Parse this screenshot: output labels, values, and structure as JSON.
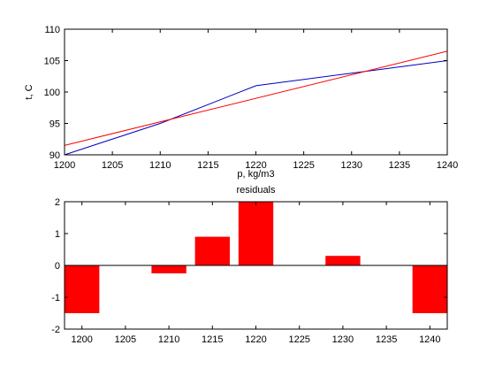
{
  "chart_data": [
    {
      "type": "line",
      "title": "",
      "xlabel": "p, kg/m3",
      "ylabel": "t, C",
      "xlim": [
        1200,
        1240
      ],
      "ylim": [
        90,
        110
      ],
      "xticks": [
        "1200",
        "1205",
        "1210",
        "1215",
        "1220",
        "1225",
        "1230",
        "1235",
        "1240"
      ],
      "yticks": [
        "90",
        "95",
        "100",
        "105",
        "110"
      ],
      "grid": false,
      "series": [
        {
          "color": "#0000c0",
          "x": [
            1200,
            1210,
            1220,
            1230,
            1240
          ],
          "y": [
            90,
            95,
            101,
            103,
            105
          ]
        },
        {
          "color": "#ff0000",
          "x": [
            1200,
            1240
          ],
          "y": [
            91.5,
            106.5
          ]
        }
      ]
    },
    {
      "type": "bar",
      "title": "residuals",
      "xlabel": "",
      "ylabel": "",
      "xlim": [
        1198,
        1242
      ],
      "ylim": [
        -2,
        2
      ],
      "xticks": [
        "1200",
        "1205",
        "1210",
        "1215",
        "1220",
        "1225",
        "1230",
        "1235",
        "1240"
      ],
      "yticks": [
        "-2",
        "-1",
        "0",
        "1",
        "2"
      ],
      "bar_width": 4,
      "color": "#ff0000",
      "x": [
        1200,
        1210,
        1215,
        1220,
        1230,
        1240
      ],
      "values": [
        -1.5,
        -0.25,
        0.9,
        2.0,
        0.3,
        -1.5
      ]
    }
  ]
}
